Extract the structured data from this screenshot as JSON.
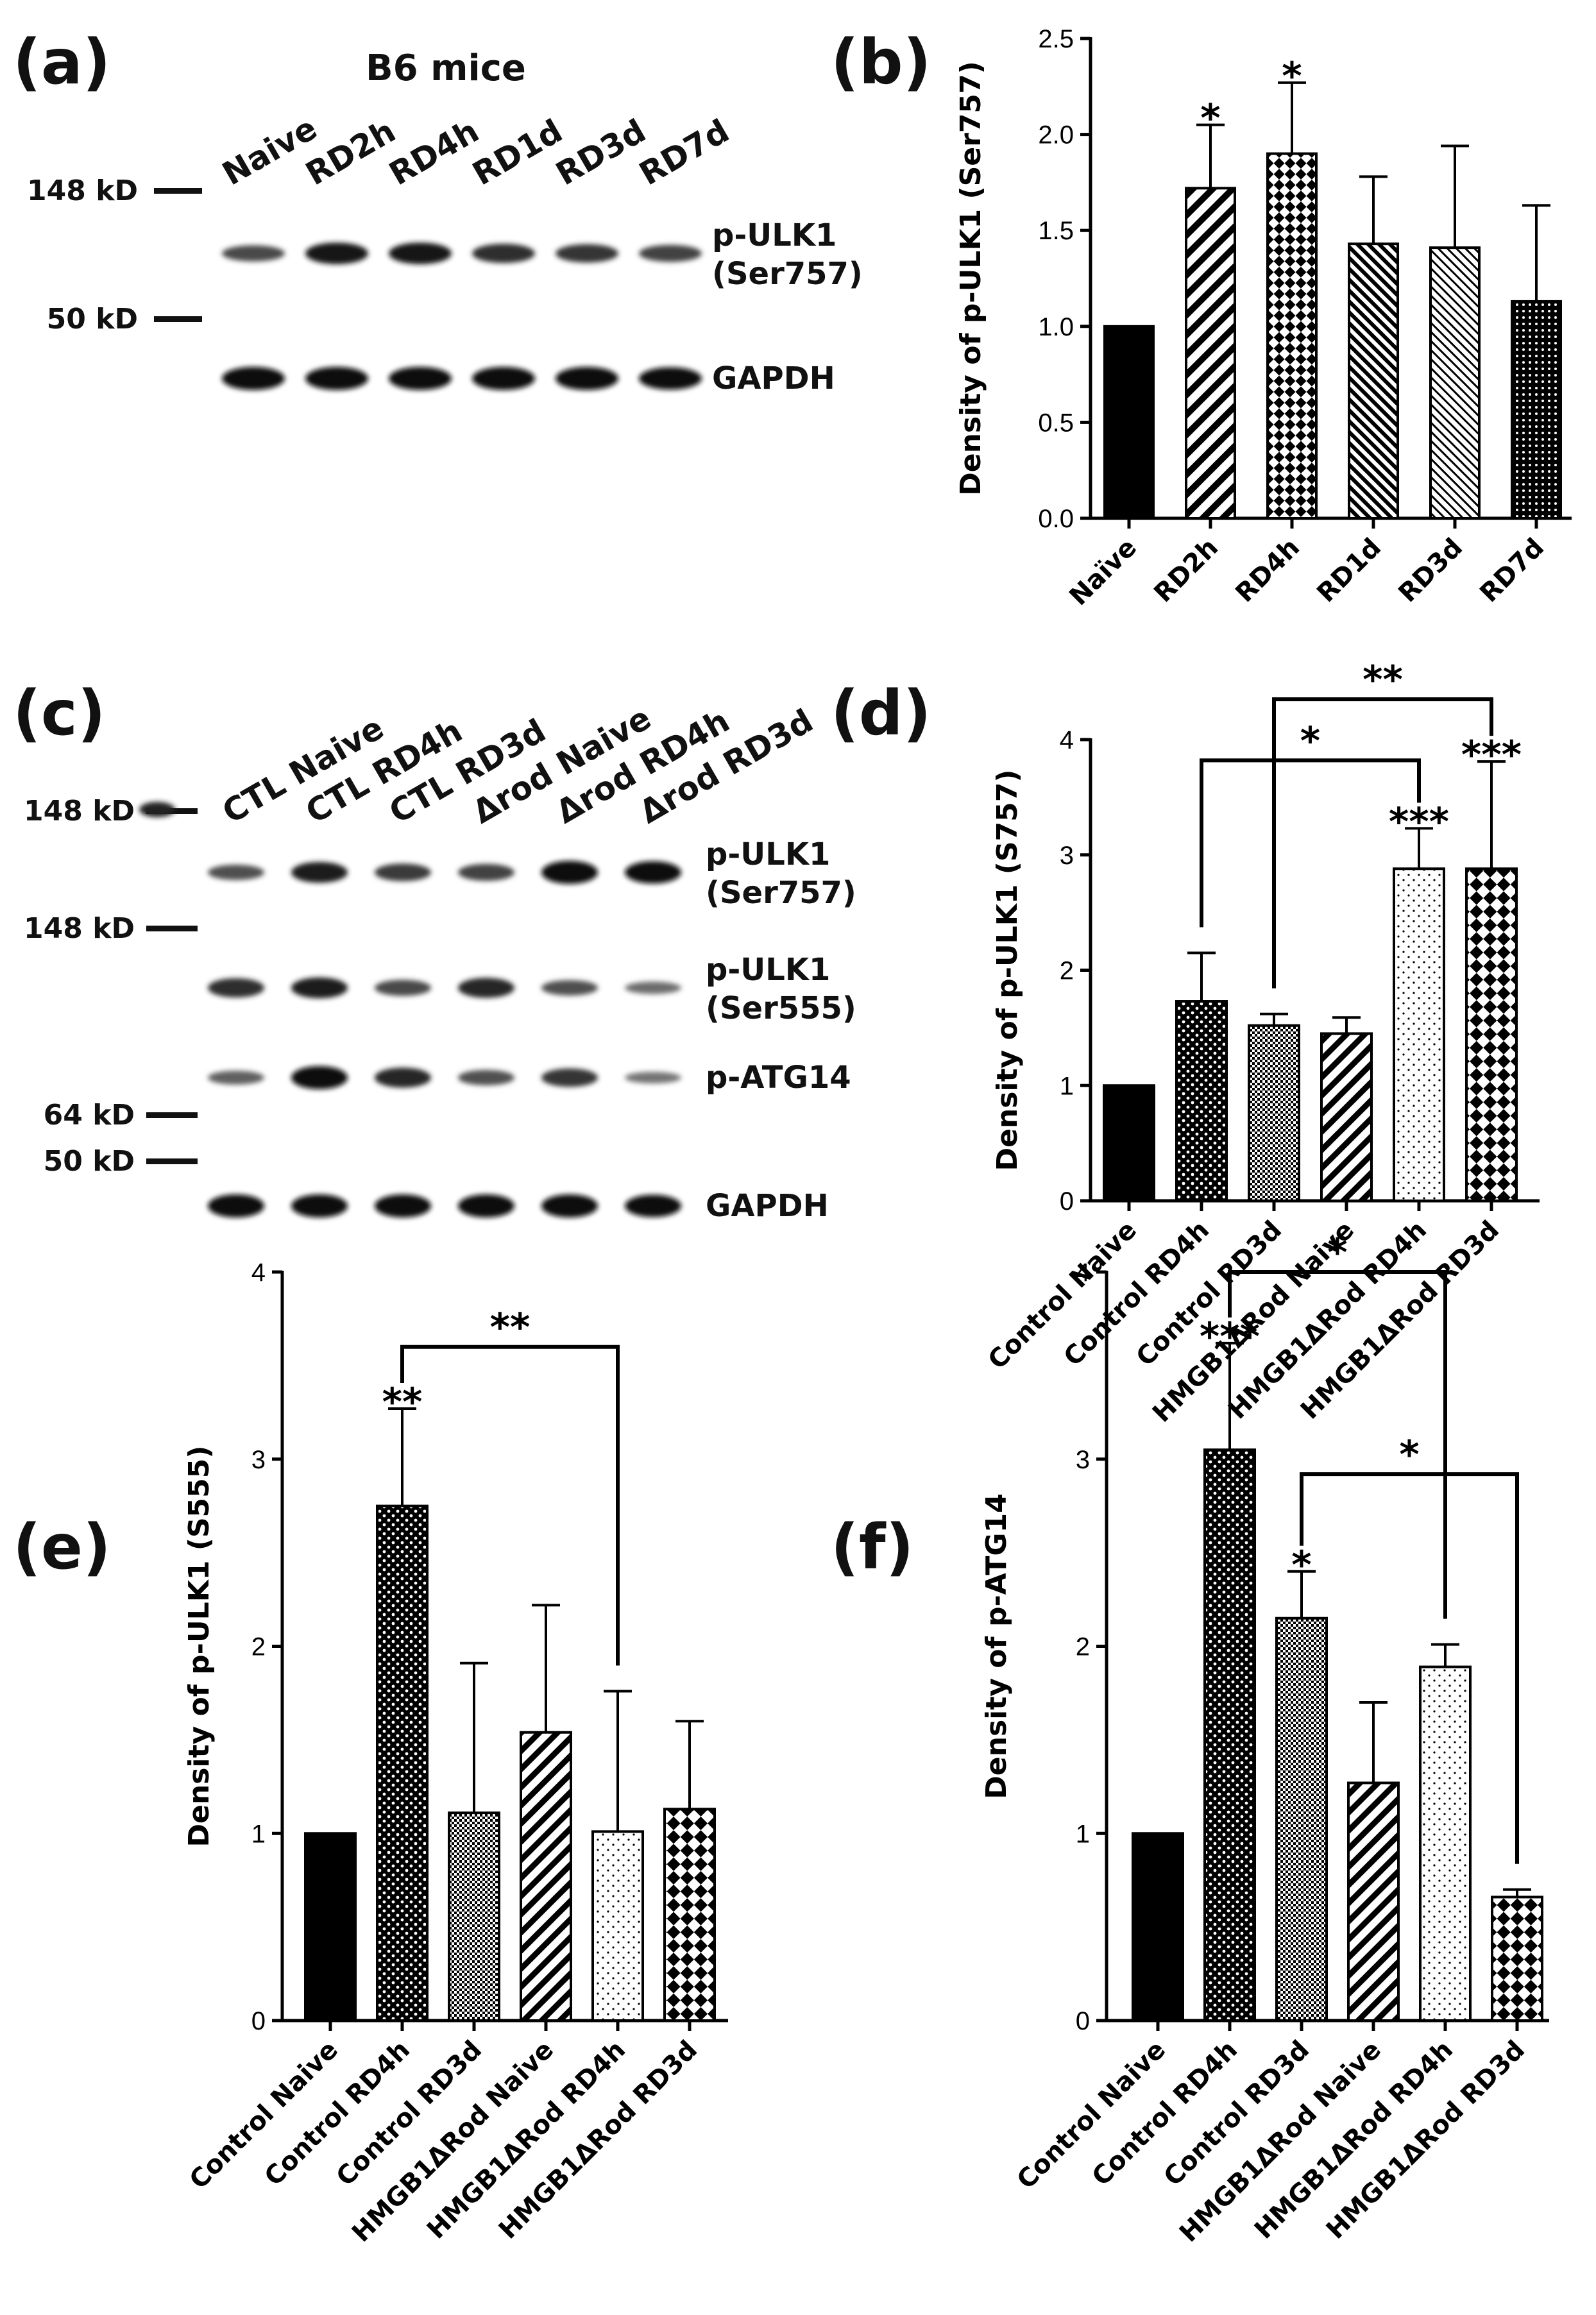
{
  "panels": {
    "a": "(a)",
    "b": "(b)",
    "c": "(c)",
    "d": "(d)",
    "e": "(e)",
    "f": "(f)"
  },
  "blot_a": {
    "title": "B6 mice",
    "lanes": [
      "Naive",
      "RD2h",
      "RD4h",
      "RD1d",
      "RD3d",
      "RD7d"
    ],
    "markers": [
      "148 kD",
      "50 kD"
    ],
    "bands": [
      {
        "label1": "p-ULK1",
        "label2": "(Ser757)",
        "intensity": [
          0.55,
          0.9,
          0.9,
          0.75,
          0.7,
          0.6
        ]
      },
      {
        "label1": "GAPDH",
        "label2": "",
        "intensity": [
          1,
          1,
          1,
          1,
          1,
          0.95
        ]
      }
    ]
  },
  "blot_c": {
    "lanes": [
      "CTL Naive",
      "CTL RD4h",
      "CTL RD3d",
      "Δrod Naive",
      "Δrod RD4h",
      "Δrod RD3d"
    ],
    "markers": [
      "148 kD",
      "148 kD",
      "64 kD",
      "50 kD"
    ],
    "bands": [
      {
        "label1": "p-ULK1",
        "label2": "(Ser757)",
        "intensity": [
          0.5,
          0.85,
          0.65,
          0.6,
          1,
          0.95
        ]
      },
      {
        "label1": "p-ULK1",
        "label2": "(Ser555)",
        "intensity": [
          0.75,
          0.85,
          0.55,
          0.8,
          0.5,
          0.3
        ]
      },
      {
        "label1": "p-ATG14",
        "label2": "",
        "intensity": [
          0.4,
          1,
          0.8,
          0.5,
          0.7,
          0.25
        ]
      },
      {
        "label1": "GAPDH",
        "label2": "",
        "intensity": [
          1,
          1,
          1,
          1,
          1,
          0.95
        ]
      }
    ]
  },
  "chart_data": [
    {
      "panel": "b",
      "type": "bar",
      "categories": [
        "Naïve",
        "RD2h",
        "RD4h",
        "RD1d",
        "RD3d",
        "RD7d"
      ],
      "values": [
        1.0,
        1.72,
        1.9,
        1.43,
        1.41,
        1.13
      ],
      "errors": [
        0,
        0.33,
        0.37,
        0.35,
        0.53,
        0.5
      ],
      "ylabel": "Density of p-ULK1 (Ser757)",
      "ylim": [
        0,
        2.5
      ],
      "yticks": [
        "0.0",
        "0.5",
        "1.0",
        "1.5",
        "2.0",
        "2.5"
      ],
      "annotations": [
        "",
        "*",
        "*",
        "",
        "",
        ""
      ],
      "comparisons": []
    },
    {
      "panel": "d",
      "type": "bar",
      "categories": [
        "Control Naive",
        "Control RD4h",
        "Control RD3d",
        "HMGB1ΔRod Naive",
        "HMGB1ΔRod RD4h",
        "HMGB1ΔRod RD3d"
      ],
      "values": [
        1.0,
        1.73,
        1.52,
        1.45,
        2.88,
        2.88
      ],
      "errors": [
        0,
        0.42,
        0.1,
        0.14,
        0.35,
        0.93
      ],
      "ylabel": "Density of p-ULK1 (S757)",
      "ylim": [
        0,
        4
      ],
      "yticks": [
        "0",
        "1",
        "2",
        "3",
        "4"
      ],
      "annotations": [
        "",
        "",
        "",
        "",
        "***",
        "***"
      ],
      "comparisons": [
        {
          "from": 1,
          "to": 4,
          "y": 3.82,
          "label": "*"
        },
        {
          "from": 2,
          "to": 5,
          "y": 4.35,
          "label": "**"
        }
      ]
    },
    {
      "panel": "e",
      "type": "bar",
      "categories": [
        "Control Naive",
        "Control RD4h",
        "Control RD3d",
        "HMGB1ΔRod Naive",
        "HMGB1ΔRod RD4h",
        "HMGB1ΔRod RD3d"
      ],
      "values": [
        1.0,
        2.75,
        1.11,
        1.54,
        1.01,
        1.13
      ],
      "errors": [
        0,
        0.52,
        0.8,
        0.68,
        0.75,
        0.47
      ],
      "ylabel": "Density of p-ULK1 (S555)",
      "ylim": [
        0,
        4
      ],
      "yticks": [
        "0",
        "1",
        "2",
        "3",
        "4"
      ],
      "annotations": [
        "",
        "**",
        "",
        "",
        "",
        ""
      ],
      "comparisons": [
        {
          "from": 1,
          "to": 4,
          "y": 3.6,
          "label": "**"
        }
      ]
    },
    {
      "panel": "f",
      "type": "bar",
      "categories": [
        "Control Naive",
        "Control RD4h",
        "Control RD3d",
        "HMGB1ΔRod Naive",
        "HMGB1ΔRod RD4h",
        "HMGB1ΔRod RD3d"
      ],
      "values": [
        1.0,
        3.05,
        2.15,
        1.27,
        1.89,
        0.66
      ],
      "errors": [
        0,
        0.57,
        0.25,
        0.43,
        0.12,
        0.04
      ],
      "ylabel": "Density of p-ATG14",
      "ylim": [
        0,
        4
      ],
      "yticks": [
        "0",
        "1",
        "2",
        "3",
        "4"
      ],
      "annotations": [
        "",
        "***",
        "*",
        "",
        "",
        ""
      ],
      "comparisons": [
        {
          "from": 1,
          "to": 4,
          "y": 4.0,
          "label": "*"
        },
        {
          "from": 2,
          "to": 5,
          "y": 2.92,
          "label": "*"
        }
      ]
    }
  ]
}
